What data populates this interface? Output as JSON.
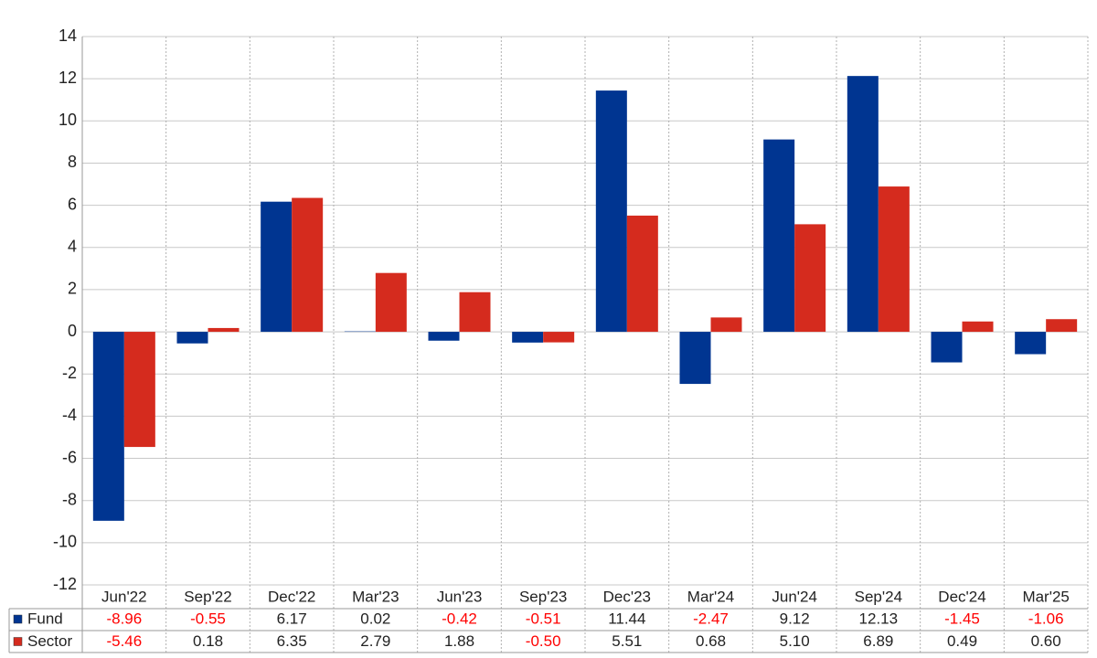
{
  "chart_data": {
    "type": "bar",
    "categories": [
      "Jun'22",
      "Sep'22",
      "Dec'22",
      "Mar'23",
      "Jun'23",
      "Sep'23",
      "Dec'23",
      "Mar'24",
      "Jun'24",
      "Sep'24",
      "Dec'24",
      "Mar'25"
    ],
    "series": [
      {
        "name": "Fund",
        "color": "#003591",
        "values": [
          -8.96,
          -0.55,
          6.17,
          0.02,
          -0.42,
          -0.51,
          11.44,
          -2.47,
          9.12,
          12.13,
          -1.45,
          -1.06
        ],
        "value_labels": [
          "-8.96",
          "-0.55",
          "6.17",
          "0.02",
          "-0.42",
          "-0.51",
          "11.44",
          "-2.47",
          "9.12",
          "12.13",
          "-1.45",
          "-1.06"
        ]
      },
      {
        "name": "Sector",
        "color": "#d52b1e",
        "values": [
          -5.46,
          0.18,
          6.35,
          2.79,
          1.88,
          -0.5,
          5.51,
          0.68,
          5.1,
          6.89,
          0.49,
          0.6
        ],
        "value_labels": [
          "-5.46",
          "0.18",
          "6.35",
          "2.79",
          "1.88",
          "-0.50",
          "5.51",
          "0.68",
          "5.10",
          "6.89",
          "0.49",
          "0.60"
        ]
      }
    ],
    "ylim": [
      -12,
      14
    ],
    "yticks": [
      -12,
      -10,
      -8,
      -6,
      -4,
      -2,
      0,
      2,
      4,
      6,
      8,
      10,
      12,
      14
    ],
    "grid": true,
    "negative_label_color": "#ff0000"
  }
}
